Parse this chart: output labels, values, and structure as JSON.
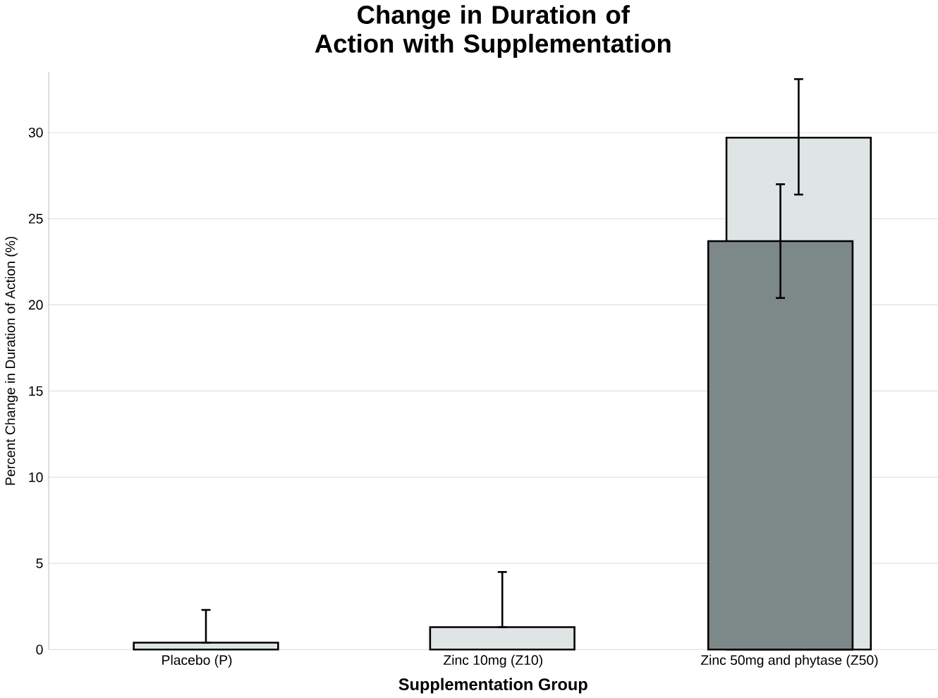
{
  "chart_data": {
    "type": "bar",
    "title": "Change in Duration of Action with Supplementation",
    "xlabel": "Supplementation Group",
    "ylabel": "Percent Change in Duration of Action (%)",
    "categories": [
      "Placebo (P)",
      "Zinc 10mg (Z10)",
      "Zinc 50mg and phytase (Z50)"
    ],
    "series": [
      {
        "color": "#dfe4e4",
        "values": [
          0.4,
          1.3,
          29.7
        ],
        "errors": [
          [
            0.4,
            2.3
          ],
          [
            1.3,
            4.5
          ],
          [
            26.4,
            33.1
          ]
        ]
      },
      {
        "color": "#7d8888",
        "values": [
          null,
          null,
          23.7
        ],
        "errors": [
          null,
          null,
          [
            20.4,
            27.0
          ]
        ]
      }
    ],
    "ylim": [
      0,
      33.5
    ],
    "yticks": [
      0,
      5,
      10,
      15,
      20,
      25,
      30
    ],
    "grid": "y"
  }
}
